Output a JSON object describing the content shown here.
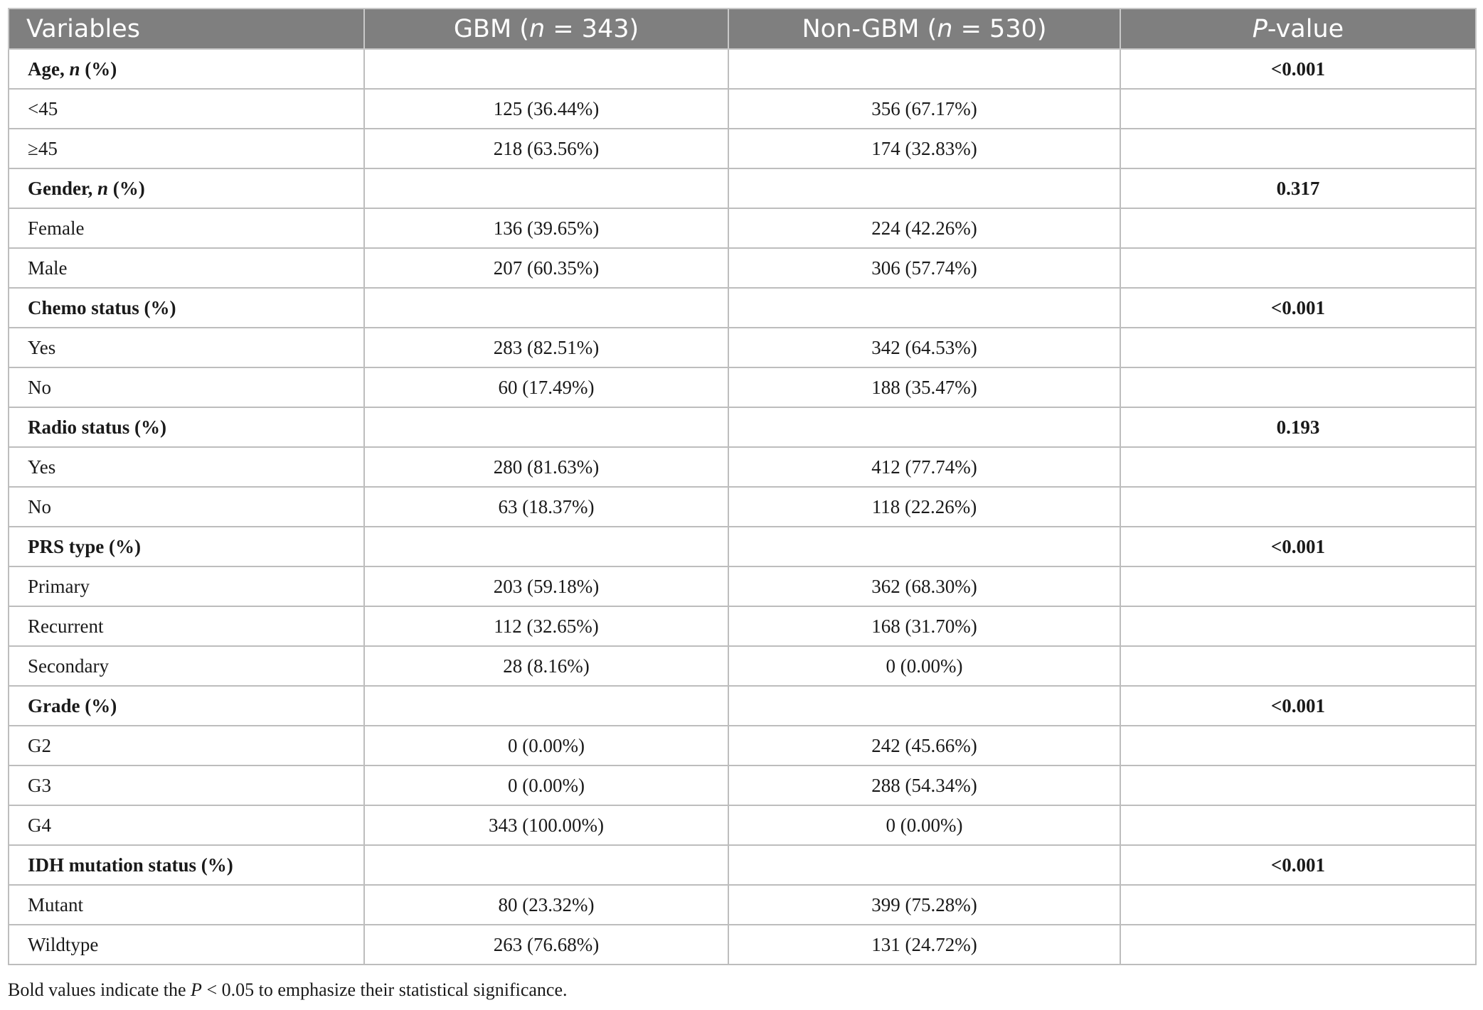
{
  "header": {
    "variables": "Variables",
    "gbm_prefix": "GBM (",
    "gbm_n": "n",
    "gbm_suffix": " = 343)",
    "nongbm_prefix": "Non-GBM (",
    "nongbm_n": "n",
    "nongbm_suffix": " = 530)",
    "p_italic": "P",
    "p_rest": "-value"
  },
  "groups": {
    "age": {
      "label_a": "Age, ",
      "label_n": "n",
      "label_b": " (%)",
      "p": "<0.001",
      "rows": [
        {
          "label": "<45",
          "gbm": "125 (36.44%)",
          "nongbm": "356 (67.17%)"
        },
        {
          "label": "≥45",
          "gbm": "218 (63.56%)",
          "nongbm": "174 (32.83%)"
        }
      ]
    },
    "gender": {
      "label_a": "Gender, ",
      "label_n": "n",
      "label_b": " (%)",
      "p": "0.317",
      "rows": [
        {
          "label": "Female",
          "gbm": "136 (39.65%)",
          "nongbm": "224 (42.26%)"
        },
        {
          "label": "Male",
          "gbm": "207 (60.35%)",
          "nongbm": "306 (57.74%)"
        }
      ]
    },
    "chemo": {
      "label": "Chemo status (%)",
      "p": "<0.001",
      "rows": [
        {
          "label": "Yes",
          "gbm": "283 (82.51%)",
          "nongbm": "342 (64.53%)"
        },
        {
          "label": "No",
          "gbm": "60 (17.49%)",
          "nongbm": "188 (35.47%)"
        }
      ]
    },
    "radio": {
      "label": "Radio status (%)",
      "p": "0.193",
      "rows": [
        {
          "label": "Yes",
          "gbm": "280 (81.63%)",
          "nongbm": "412 (77.74%)"
        },
        {
          "label": "No",
          "gbm": "63 (18.37%)",
          "nongbm": "118 (22.26%)"
        }
      ]
    },
    "prs": {
      "label": "PRS type (%)",
      "p": "<0.001",
      "rows": [
        {
          "label": "Primary",
          "gbm": "203 (59.18%)",
          "nongbm": "362 (68.30%)"
        },
        {
          "label": "Recurrent",
          "gbm": "112 (32.65%)",
          "nongbm": "168 (31.70%)"
        },
        {
          "label": "Secondary",
          "gbm": "28 (8.16%)",
          "nongbm": "0 (0.00%)"
        }
      ]
    },
    "grade": {
      "label": "Grade (%)",
      "p": "<0.001",
      "rows": [
        {
          "label": "G2",
          "gbm": "0 (0.00%)",
          "nongbm": "242 (45.66%)"
        },
        {
          "label": "G3",
          "gbm": "0 (0.00%)",
          "nongbm": "288 (54.34%)"
        },
        {
          "label": "G4",
          "gbm": "343 (100.00%)",
          "nongbm": "0 (0.00%)"
        }
      ]
    },
    "idh": {
      "label": "IDH mutation status (%)",
      "p": "<0.001",
      "rows": [
        {
          "label": "Mutant",
          "gbm": "80 (23.32%)",
          "nongbm": "399 (75.28%)"
        },
        {
          "label": "Wildtype",
          "gbm": "263 (76.68%)",
          "nongbm": "131 (24.72%)"
        }
      ]
    }
  },
  "footnote": {
    "prefix": "Bold values indicate the ",
    "p_italic": "P",
    "suffix": " < 0.05 to emphasize their statistical significance."
  }
}
